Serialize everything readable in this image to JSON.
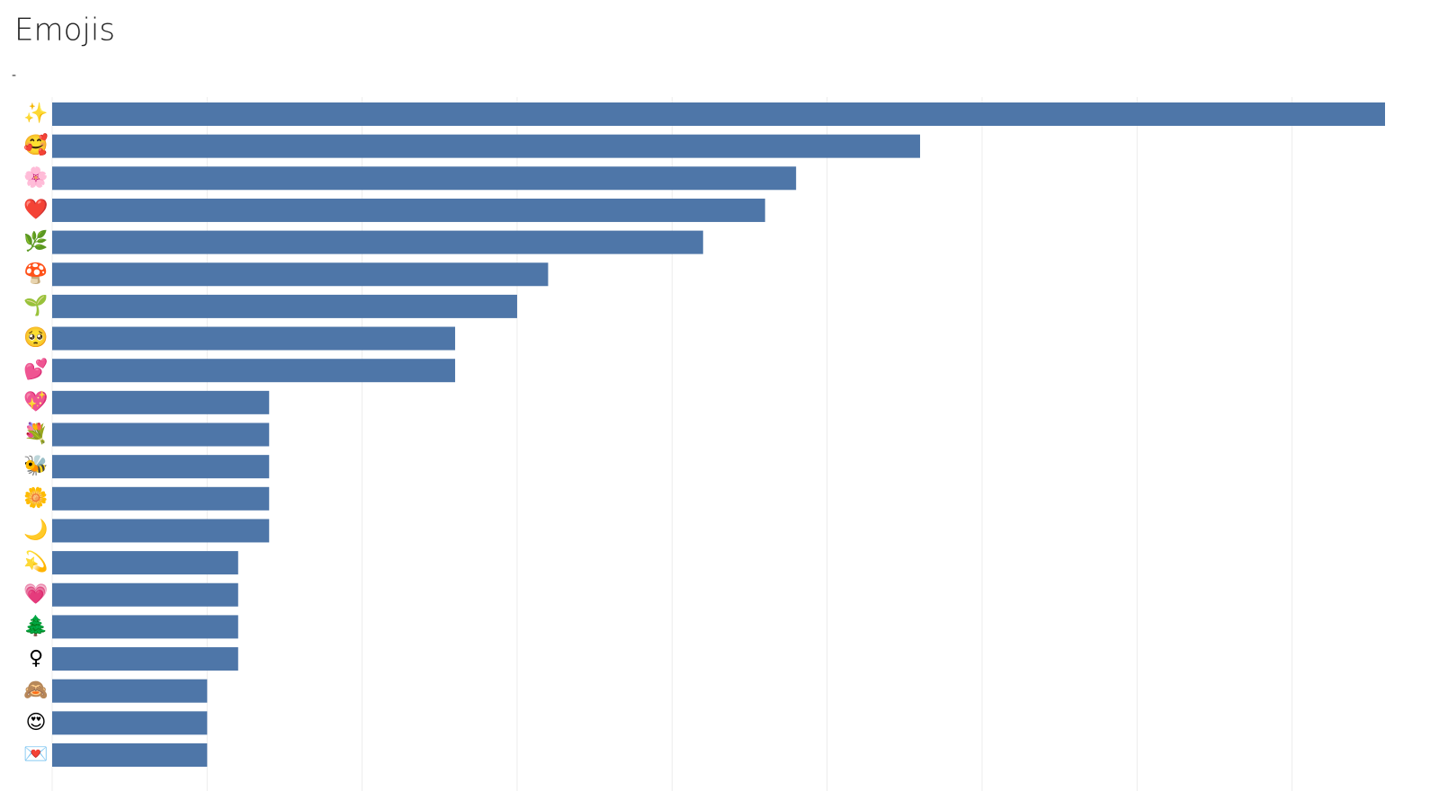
{
  "chart_data": {
    "type": "bar",
    "orientation": "horizontal",
    "title": "Emojis",
    "subtitle": "-",
    "categories": [
      "✨",
      "🥰",
      "🌸",
      "❤️",
      "🌿",
      "🍄",
      "🌱",
      "🥺",
      "💕",
      "💖",
      "💐",
      "🐝",
      "🌼",
      "🌙",
      "💫",
      "💗",
      "🌲",
      "♀",
      "🙈",
      "😍",
      "💌"
    ],
    "values": [
      43,
      28,
      24,
      23,
      21,
      16,
      15,
      13,
      13,
      7,
      7,
      7,
      7,
      7,
      6,
      6,
      6,
      6,
      5,
      5,
      5
    ],
    "color": "#4e76a8",
    "xlim": [
      0,
      43
    ],
    "xticks": [
      0,
      5,
      10,
      15,
      20,
      25,
      30,
      35,
      40
    ],
    "grid": true
  }
}
